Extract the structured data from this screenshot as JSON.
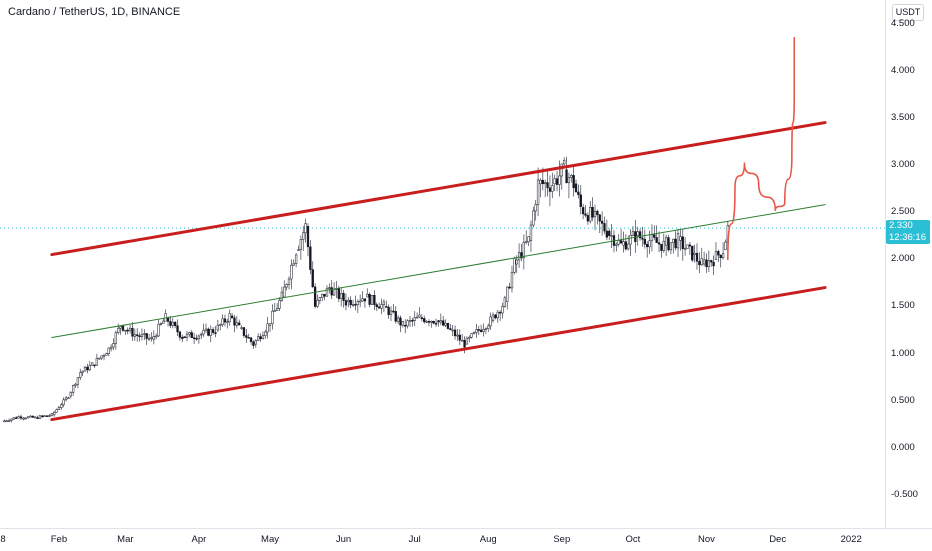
{
  "header": {
    "symbol_title": "Cardano / TetherUS, 1D, BINANCE"
  },
  "price_axis": {
    "unit_button": "USDT",
    "last_price": "2.330",
    "countdown": "12:36:16"
  },
  "colors": {
    "channel": "#c81e1e",
    "midline": "#2e7d32",
    "projection": "#e8584a",
    "up_candle": "#26a69a",
    "down_candle": "#ef5350",
    "last_price_tag": "#2bbfd6"
  },
  "chart_data": {
    "type": "line",
    "title": "Cardano / TetherUS, 1D, BINANCE",
    "xlabel": "",
    "ylabel": "",
    "x_ticks": [
      "8",
      "Feb",
      "Mar",
      "Apr",
      "May",
      "Jun",
      "Jul",
      "Aug",
      "Sep",
      "Oct",
      "Nov",
      "Dec",
      "2022"
    ],
    "y_ticks": [
      "4.500",
      "4.000",
      "3.500",
      "3.000",
      "2.500",
      "2.000",
      "1.500",
      "1.000",
      "0.500",
      "0.000",
      "-0.500"
    ],
    "ylim": [
      -0.85,
      4.75
    ],
    "grid": false,
    "series": [
      {
        "type": "price",
        "points": [
          [
            "2021-01-08",
            0.28
          ],
          [
            "2021-01-15",
            0.33
          ],
          [
            "2021-01-22",
            0.32
          ],
          [
            "2021-01-29",
            0.35
          ],
          [
            "2021-02-05",
            0.55
          ],
          [
            "2021-02-10",
            0.8
          ],
          [
            "2021-02-15",
            0.88
          ],
          [
            "2021-02-22",
            1.05
          ],
          [
            "2021-02-27",
            1.3
          ],
          [
            "2021-03-05",
            1.2
          ],
          [
            "2021-03-12",
            1.15
          ],
          [
            "2021-03-18",
            1.38
          ],
          [
            "2021-03-25",
            1.18
          ],
          [
            "2021-04-01",
            1.2
          ],
          [
            "2021-04-08",
            1.25
          ],
          [
            "2021-04-14",
            1.4
          ],
          [
            "2021-04-18",
            1.27
          ],
          [
            "2021-04-24",
            1.1
          ],
          [
            "2021-04-30",
            1.3
          ],
          [
            "2021-05-06",
            1.6
          ],
          [
            "2021-05-12",
            2.1
          ],
          [
            "2021-05-16",
            2.35
          ],
          [
            "2021-05-20",
            1.5
          ],
          [
            "2021-05-26",
            1.7
          ],
          [
            "2021-06-02",
            1.55
          ],
          [
            "2021-06-10",
            1.6
          ],
          [
            "2021-06-18",
            1.5
          ],
          [
            "2021-06-26",
            1.3
          ],
          [
            "2021-07-03",
            1.38
          ],
          [
            "2021-07-10",
            1.35
          ],
          [
            "2021-07-16",
            1.25
          ],
          [
            "2021-07-22",
            1.1
          ],
          [
            "2021-07-28",
            1.25
          ],
          [
            "2021-08-02",
            1.35
          ],
          [
            "2021-08-08",
            1.55
          ],
          [
            "2021-08-12",
            1.95
          ],
          [
            "2021-08-18",
            2.2
          ],
          [
            "2021-08-22",
            2.8
          ],
          [
            "2021-08-28",
            2.8
          ],
          [
            "2021-09-02",
            2.95
          ],
          [
            "2021-09-06",
            2.8
          ],
          [
            "2021-09-09",
            2.55
          ],
          [
            "2021-09-14",
            2.45
          ],
          [
            "2021-09-20",
            2.3
          ],
          [
            "2021-09-26",
            2.15
          ],
          [
            "2021-10-02",
            2.25
          ],
          [
            "2021-10-08",
            2.2
          ],
          [
            "2021-10-14",
            2.15
          ],
          [
            "2021-10-20",
            2.2
          ],
          [
            "2021-10-26",
            2.05
          ],
          [
            "2021-10-30",
            1.95
          ],
          [
            "2021-11-04",
            2.0
          ],
          [
            "2021-11-08",
            2.1
          ],
          [
            "2021-11-10",
            2.33
          ]
        ]
      },
      {
        "type": "projection",
        "points": [
          [
            "2021-11-10",
            2.0
          ],
          [
            "2021-11-13",
            2.75
          ],
          [
            "2021-11-17",
            3.02
          ],
          [
            "2021-11-23",
            2.8
          ],
          [
            "2021-11-30",
            2.52
          ],
          [
            "2021-12-04",
            2.6
          ],
          [
            "2021-12-07",
            3.1
          ],
          [
            "2021-12-08",
            3.8
          ],
          [
            "2021-12-08",
            4.35
          ]
        ]
      }
    ],
    "annotations": [
      {
        "type": "channel_upper",
        "from": [
          "2021-01-29",
          2.05
        ],
        "to": [
          "2021-12-21",
          3.45
        ]
      },
      {
        "type": "channel_lower",
        "from": [
          "2021-01-29",
          0.3
        ],
        "to": [
          "2021-12-21",
          1.7
        ]
      },
      {
        "type": "channel_mid",
        "from": [
          "2021-01-29",
          1.17
        ],
        "to": [
          "2021-12-21",
          2.58
        ]
      },
      {
        "type": "last_price_line",
        "value": 2.33
      }
    ]
  }
}
